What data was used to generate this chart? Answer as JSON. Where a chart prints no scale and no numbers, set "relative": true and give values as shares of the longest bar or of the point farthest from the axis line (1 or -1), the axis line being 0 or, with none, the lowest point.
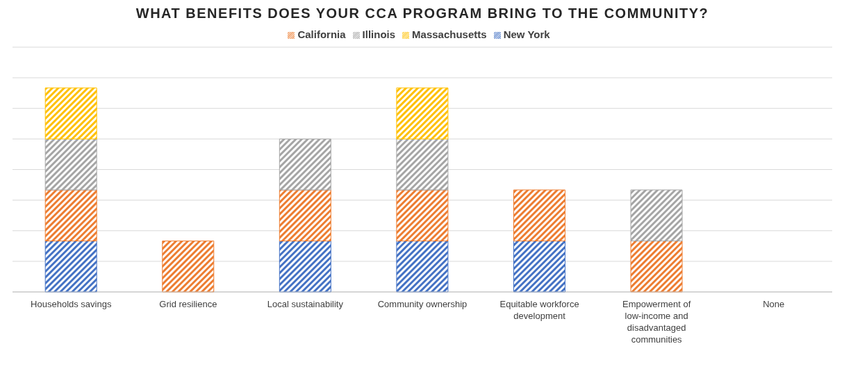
{
  "chart_data": {
    "type": "bar",
    "title": "WHAT BENEFITS DOES YOUR CCA PROGRAM BRING TO THE COMMUNITY?",
    "categories": [
      "Households savings",
      "Grid resilience",
      "Local sustainability",
      "Community ownership",
      "Equitable workforce development",
      "Empowerment of low-income and disadvantaged communities",
      "None"
    ],
    "series": [
      {
        "name": "New York",
        "color": "#4472c4",
        "values": [
          0.25,
          null,
          0.25,
          0.25,
          0.25,
          null,
          null
        ]
      },
      {
        "name": "California",
        "color": "#ed7d31",
        "values": [
          0.25,
          0.25,
          0.25,
          0.25,
          0.25,
          0.25,
          null
        ]
      },
      {
        "name": "Illinois",
        "color": "#a5a5a5",
        "values": [
          0.25,
          null,
          0.25,
          0.25,
          null,
          0.25,
          null
        ]
      },
      {
        "name": "Massachusetts",
        "color": "#ffc000",
        "values": [
          0.25,
          null,
          null,
          0.25,
          null,
          null,
          null
        ]
      }
    ],
    "stacked": true,
    "relative": true,
    "grid": "y",
    "legend": "top"
  }
}
